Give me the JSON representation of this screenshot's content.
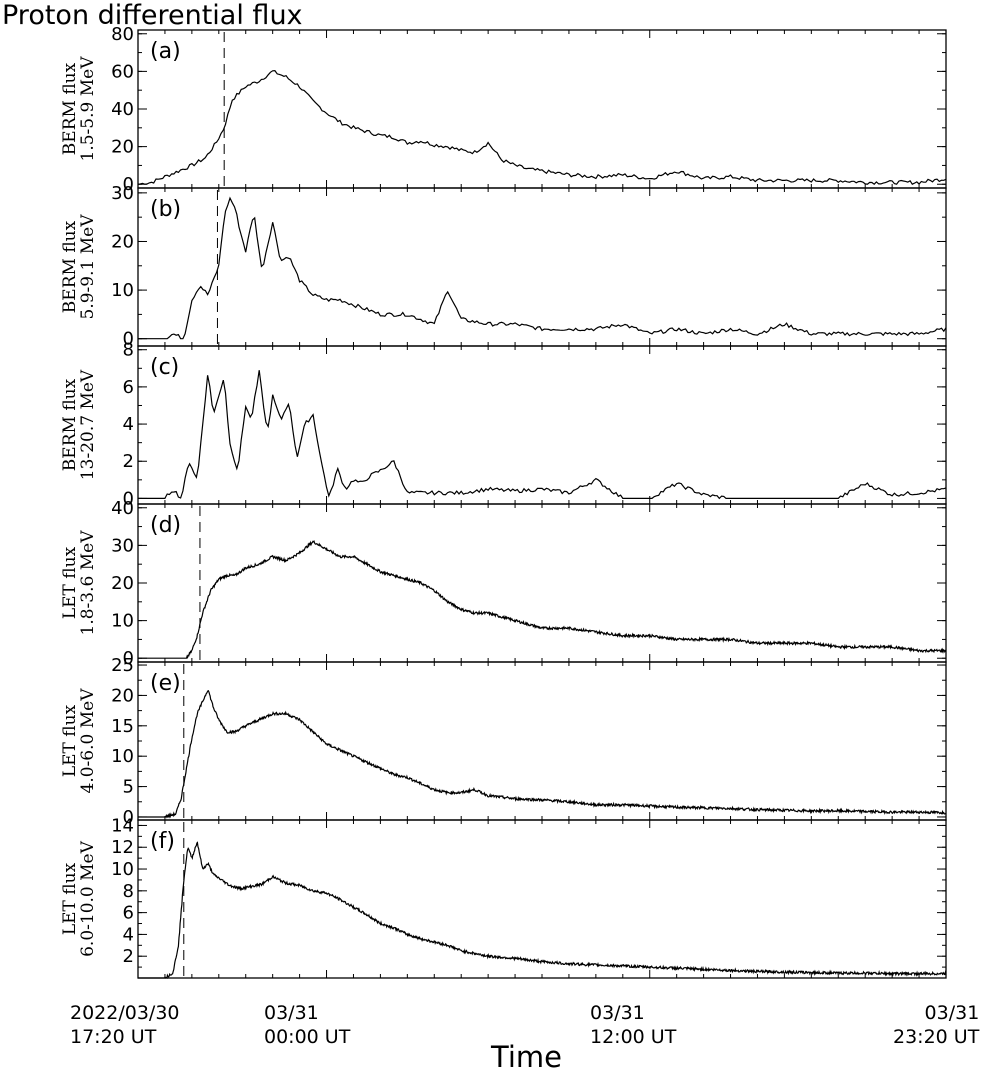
{
  "title": "Proton differential flux",
  "x_axis": {
    "title": "Time",
    "tick_labels": [
      {
        "line1": "2022/03/30",
        "line2": "17:20 UT",
        "hours": 0
      },
      {
        "line1": "03/31",
        "line2": "00:00 UT",
        "hours": 6.667
      },
      {
        "line1": "03/31",
        "line2": "12:00 UT",
        "hours": 18.667
      },
      {
        "line1": "03/31",
        "line2": "23:20 UT",
        "hours": 30.0
      }
    ]
  },
  "chart_data": [
    {
      "type": "line",
      "panel_label": "(a)",
      "ylabel_line1": "BERM flux",
      "ylabel_line2": "1.5-5.9 MeV",
      "ylim": [
        -2,
        82
      ],
      "yticks": [
        0,
        20,
        40,
        60,
        80
      ],
      "marker_hours": 3.2,
      "x_hours": [
        0,
        0.5,
        1.0,
        1.5,
        2.0,
        2.5,
        2.9,
        3.2,
        3.5,
        4.0,
        4.5,
        5.0,
        5.5,
        6.0,
        6.5,
        7.0,
        7.5,
        8.0,
        8.5,
        9.0,
        9.5,
        10.0,
        10.5,
        11.0,
        11.5,
        12.0,
        12.5,
        13.0,
        13.5,
        14.0,
        14.5,
        15.0,
        15.5,
        16.0,
        17.0,
        18.0,
        19.0,
        20.0,
        21.0,
        22.0,
        23.0,
        24.0,
        25.0,
        26.0,
        27.0,
        28.0,
        29.0,
        30.0
      ],
      "y": [
        0,
        1,
        4,
        7,
        10,
        14,
        22,
        30,
        45,
        52,
        55,
        60,
        57,
        52,
        44,
        38,
        33,
        30,
        28,
        26,
        25,
        22,
        23,
        21,
        20,
        18,
        17,
        22,
        13,
        10,
        8,
        7,
        6,
        5,
        4,
        5,
        3,
        7,
        3,
        4,
        2,
        2,
        2,
        2,
        1,
        1,
        1,
        3
      ]
    },
    {
      "type": "line",
      "panel_label": "(b)",
      "ylabel_line1": "BERM flux",
      "ylabel_line2": "5.9-9.1 MeV",
      "ylim": [
        -1.5,
        31
      ],
      "yticks": [
        0,
        10,
        20,
        30
      ],
      "marker_hours": 2.95,
      "x_hours": [
        0,
        0.5,
        1.0,
        1.3,
        1.7,
        2.0,
        2.3,
        2.6,
        3.0,
        3.2,
        3.4,
        3.6,
        3.8,
        4.0,
        4.3,
        4.6,
        5.0,
        5.3,
        5.6,
        6.0,
        6.5,
        7.0,
        7.5,
        8.0,
        8.5,
        9.0,
        9.5,
        10.0,
        10.5,
        11.0,
        11.5,
        12.0,
        13.0,
        14.0,
        15.0,
        16.0,
        17.0,
        18.0,
        19.0,
        20.0,
        21.0,
        22.0,
        23.0,
        24.0,
        25.0,
        26.0,
        27.0,
        28.0,
        29.0,
        30.0
      ],
      "y": [
        0,
        0,
        0,
        1,
        0,
        8,
        11,
        9,
        15,
        25,
        29,
        27,
        22,
        18,
        26,
        14,
        24,
        16,
        17,
        12,
        9,
        8,
        8,
        7,
        6,
        5,
        5,
        5,
        4,
        3,
        10,
        4,
        3,
        3,
        2,
        2,
        2,
        3,
        1,
        2,
        1,
        2,
        1,
        3,
        1,
        1,
        1,
        1,
        1,
        2
      ]
    },
    {
      "type": "line",
      "panel_label": "(c)",
      "ylabel_line1": "BERM flux",
      "ylabel_line2": "13-20.7 MeV",
      "ylim": [
        -0.3,
        8.2
      ],
      "yticks": [
        0,
        2,
        4,
        6,
        8
      ],
      "x_hours": [
        0,
        0.5,
        1.0,
        1.3,
        1.6,
        1.9,
        2.2,
        2.4,
        2.6,
        2.8,
        3.0,
        3.2,
        3.4,
        3.7,
        4.0,
        4.2,
        4.5,
        4.8,
        5.0,
        5.3,
        5.6,
        5.9,
        6.2,
        6.5,
        6.8,
        7.1,
        7.4,
        7.7,
        8.0,
        8.3,
        8.6,
        9.0,
        9.5,
        10.0,
        10.5,
        11.0,
        12.0,
        13.0,
        14.0,
        15.0,
        16.0,
        17.0,
        18.0,
        19.0,
        20.0,
        21.0,
        22.0,
        23.0,
        24.0,
        25.0,
        26.0,
        27.0,
        28.0,
        29.0,
        30.0
      ],
      "y": [
        0,
        0,
        0,
        0.5,
        0,
        2,
        1,
        4,
        6.8,
        4.5,
        5.5,
        6.6,
        3,
        1.5,
        5,
        4.2,
        6.8,
        3.5,
        5.5,
        4.2,
        5.2,
        2.2,
        4,
        4.5,
        2,
        0,
        1.6,
        0.5,
        1,
        0.8,
        1.2,
        1.5,
        2,
        0.3,
        0.3,
        0.3,
        0.3,
        0.5,
        0.4,
        0.5,
        0.3,
        1,
        0,
        0,
        0.8,
        0.2,
        0,
        0,
        0,
        0,
        0,
        0.8,
        0.2,
        0.3,
        0.5
      ]
    },
    {
      "type": "line",
      "panel_label": "(d)",
      "ylabel_line1": "LET flux",
      "ylabel_line2": "1.8-3.6 MeV",
      "ylim": [
        -1,
        41
      ],
      "yticks": [
        0,
        10,
        20,
        30,
        40
      ],
      "marker_hours": 2.3,
      "x_hours": [
        0,
        1.0,
        1.8,
        2.0,
        2.2,
        2.4,
        2.7,
        3.0,
        3.3,
        3.6,
        4.0,
        4.5,
        5.0,
        5.5,
        6.0,
        6.5,
        7.0,
        7.5,
        8.0,
        8.5,
        9.0,
        9.5,
        10.0,
        10.5,
        11.0,
        11.5,
        12.0,
        12.5,
        13.0,
        13.5,
        14.0,
        14.5,
        15.0,
        16.0,
        17.0,
        18.0,
        19.0,
        20.0,
        21.0,
        22.0,
        23.0,
        24.0,
        25.0,
        26.0,
        27.0,
        28.0,
        29.0,
        30.0
      ],
      "y": [
        0,
        0,
        0,
        2,
        6,
        12,
        18,
        21,
        22,
        22,
        24,
        25,
        27,
        26,
        28,
        31,
        29,
        27,
        27,
        25,
        23,
        22,
        21,
        20,
        18,
        15,
        13,
        12,
        12,
        11,
        10,
        9,
        8,
        8,
        7,
        6,
        6,
        5,
        5,
        5,
        4,
        4,
        4,
        3,
        3,
        3,
        2,
        2
      ]
    },
    {
      "type": "line",
      "panel_label": "(e)",
      "ylabel_line1": "LET flux",
      "ylabel_line2": "4.0-6.0 MeV",
      "ylim": [
        -0.5,
        25.5
      ],
      "yticks": [
        0,
        5,
        10,
        15,
        20,
        25
      ],
      "marker_hours": 1.7,
      "x_hours": [
        0,
        1.0,
        1.4,
        1.6,
        1.8,
        2.0,
        2.2,
        2.4,
        2.6,
        2.8,
        3.0,
        3.3,
        3.6,
        4.0,
        4.5,
        5.0,
        5.5,
        6.0,
        6.5,
        7.0,
        7.5,
        8.0,
        8.5,
        9.0,
        9.5,
        10.0,
        10.5,
        11.0,
        11.5,
        12.0,
        12.5,
        13.0,
        14.0,
        15.0,
        16.0,
        17.0,
        18.0,
        19.0,
        20.0,
        21.0,
        22.0,
        23.0,
        24.0,
        25.0,
        26.0,
        27.0,
        28.0,
        29.0,
        30.0
      ],
      "y": [
        0,
        0,
        0.5,
        3,
        8,
        13,
        17,
        19,
        21,
        18,
        16,
        14,
        14,
        15,
        16,
        17,
        17,
        16,
        14,
        12,
        11,
        10,
        9,
        8,
        7,
        6.5,
        5.5,
        4.5,
        4,
        4,
        4.5,
        3.5,
        3,
        2.8,
        2.5,
        2,
        2,
        1.8,
        1.6,
        1.5,
        1.4,
        1.2,
        1.1,
        1,
        1,
        0.9,
        0.8,
        0.8,
        0.7
      ]
    },
    {
      "type": "line",
      "panel_label": "(f)",
      "ylabel_line1": "LET flux",
      "ylabel_line2": "6.0-10.0 MeV",
      "ylim": [
        0,
        14.5
      ],
      "yticks": [
        2,
        4,
        6,
        8,
        10,
        12,
        14
      ],
      "marker_hours": 1.7,
      "x_hours": [
        0,
        1.0,
        1.3,
        1.5,
        1.7,
        1.85,
        2.0,
        2.2,
        2.4,
        2.6,
        2.8,
        3.1,
        3.4,
        3.8,
        4.2,
        4.6,
        5.0,
        5.5,
        6.0,
        6.5,
        7.0,
        7.5,
        8.0,
        8.5,
        9.0,
        9.5,
        10.0,
        10.5,
        11.0,
        11.5,
        12.0,
        13.0,
        14.0,
        15.0,
        16.0,
        17.0,
        18.0,
        19.0,
        20.0,
        21.0,
        22.0,
        23.0,
        24.0,
        25.0,
        26.0,
        27.0,
        28.0,
        29.0,
        30.0
      ],
      "y": [
        0,
        0,
        0.5,
        3,
        9,
        12,
        11,
        12.5,
        10,
        10.5,
        9.5,
        9,
        8.5,
        8.2,
        8.4,
        8.6,
        9.3,
        8.7,
        8.5,
        8,
        7.8,
        7.2,
        6.5,
        5.8,
        5,
        4.6,
        4,
        3.6,
        3.3,
        3,
        2.5,
        2,
        1.8,
        1.5,
        1.3,
        1.2,
        1.1,
        1,
        0.9,
        0.8,
        0.7,
        0.6,
        0.55,
        0.5,
        0.45,
        0.45,
        0.4,
        0.4,
        0.4
      ]
    }
  ]
}
